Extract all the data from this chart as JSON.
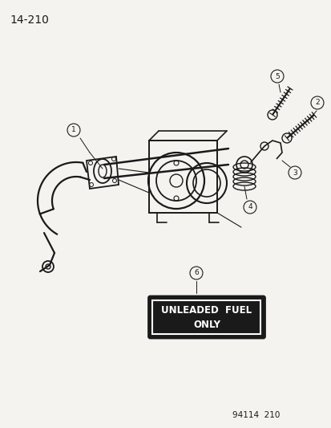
{
  "bg_color": "#f5f3f0",
  "line_color": "#1a1a1a",
  "page_label": "14-210",
  "footer": "94114  210",
  "label_box_text_line1": "UNLEADED  FUEL",
  "label_box_text_line2": "ONLY",
  "fig_w": 4.14,
  "fig_h": 5.33,
  "dpi": 100
}
